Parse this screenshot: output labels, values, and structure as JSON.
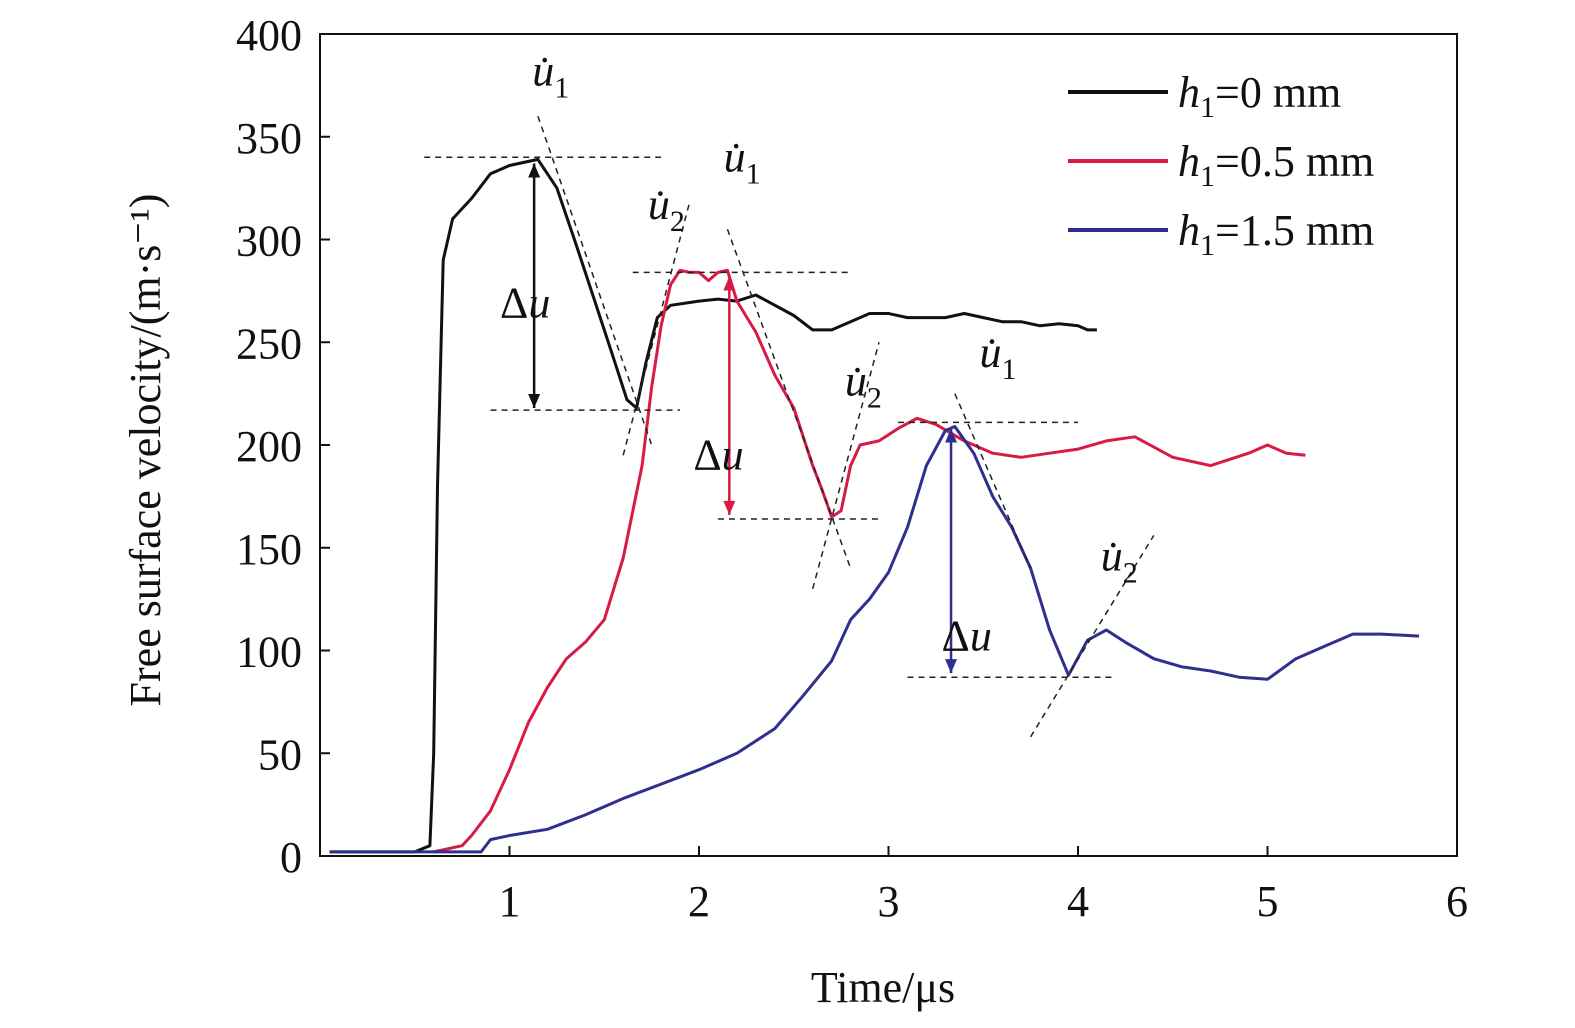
{
  "chart_data": {
    "type": "line",
    "title": "",
    "xlabel": "Time/μs",
    "ylabel": "Free surface velocity/(m·s⁻¹)",
    "xlim": [
      0,
      6
    ],
    "ylim": [
      0,
      400
    ],
    "xticks": [
      "1",
      "2",
      "3",
      "4",
      "5",
      "6"
    ],
    "yticks": [
      "0",
      "50",
      "100",
      "150",
      "200",
      "250",
      "300",
      "350",
      "400"
    ],
    "grid": false,
    "legend_position": "top-right",
    "series": [
      {
        "name": "h1=0 mm",
        "legend_label": {
          "italic": "h",
          "sub": "1",
          "rest": "=0 mm"
        },
        "color": "#111111",
        "x": [
          0.05,
          0.3,
          0.5,
          0.58,
          0.6,
          0.62,
          0.65,
          0.7,
          0.8,
          0.9,
          1.0,
          1.1,
          1.15,
          1.25,
          1.35,
          1.45,
          1.55,
          1.62,
          1.67,
          1.72,
          1.78,
          1.85,
          2.0,
          2.1,
          2.2,
          2.3,
          2.38,
          2.5,
          2.6,
          2.7,
          2.8,
          2.9,
          3.0,
          3.1,
          3.2,
          3.3,
          3.4,
          3.5,
          3.6,
          3.7,
          3.8,
          3.9,
          4.0,
          4.05,
          4.1
        ],
        "y": [
          2,
          2,
          2,
          5,
          50,
          180,
          290,
          310,
          320,
          332,
          336,
          338,
          339,
          325,
          298,
          270,
          242,
          222,
          218,
          240,
          262,
          268,
          270,
          271,
          270,
          273,
          269,
          263,
          256,
          256,
          260,
          264,
          264,
          262,
          262,
          262,
          264,
          262,
          260,
          260,
          258,
          259,
          258,
          256,
          256
        ]
      },
      {
        "name": "h1=0.5 mm",
        "legend_label": {
          "italic": "h",
          "sub": "1",
          "rest": "=0.5 mm"
        },
        "color": "#d81b45",
        "x": [
          0.6,
          0.75,
          0.8,
          0.9,
          1.0,
          1.1,
          1.2,
          1.3,
          1.4,
          1.5,
          1.6,
          1.7,
          1.75,
          1.8,
          1.85,
          1.9,
          1.95,
          2.0,
          2.05,
          2.1,
          2.15,
          2.2,
          2.3,
          2.4,
          2.5,
          2.6,
          2.65,
          2.7,
          2.75,
          2.8,
          2.85,
          2.95,
          3.05,
          3.15,
          3.25,
          3.4,
          3.55,
          3.7,
          3.85,
          4.0,
          4.15,
          4.3,
          4.5,
          4.7,
          4.9,
          5.0,
          5.1,
          5.2
        ],
        "y": [
          2,
          5,
          10,
          22,
          42,
          65,
          82,
          96,
          104,
          115,
          145,
          190,
          228,
          258,
          278,
          285,
          284,
          284,
          280,
          284,
          285,
          270,
          255,
          234,
          218,
          190,
          178,
          165,
          168,
          190,
          200,
          202,
          208,
          213,
          210,
          202,
          196,
          194,
          196,
          198,
          202,
          204,
          194,
          190,
          196,
          200,
          196,
          195
        ]
      },
      {
        "name": "h1=1.5 mm",
        "legend_label": {
          "italic": "h",
          "sub": "1",
          "rest": "=1.5 mm"
        },
        "color": "#2f2f8f",
        "x": [
          0.05,
          0.3,
          0.6,
          0.85,
          0.9,
          1.0,
          1.2,
          1.4,
          1.6,
          1.8,
          2.0,
          2.2,
          2.4,
          2.55,
          2.7,
          2.8,
          2.9,
          3.0,
          3.1,
          3.2,
          3.3,
          3.35,
          3.45,
          3.55,
          3.65,
          3.75,
          3.85,
          3.95,
          4.05,
          4.15,
          4.25,
          4.4,
          4.55,
          4.7,
          4.85,
          5.0,
          5.15,
          5.3,
          5.45,
          5.6,
          5.8
        ],
        "y": [
          2,
          2,
          2,
          2,
          8,
          10,
          13,
          20,
          28,
          35,
          42,
          50,
          62,
          78,
          95,
          115,
          125,
          138,
          160,
          190,
          207,
          209,
          196,
          175,
          160,
          140,
          110,
          88,
          105,
          110,
          104,
          96,
          92,
          90,
          87,
          86,
          96,
          102,
          108,
          108,
          107
        ]
      }
    ],
    "annotations": [
      {
        "label_main": "u",
        "label_sub": "1",
        "dot": true,
        "x": 1.12,
        "y": 375
      },
      {
        "label_main": "u",
        "label_sub": "2",
        "dot": true,
        "x": 1.73,
        "y": 310
      },
      {
        "label_main": "Δu",
        "x": 0.95,
        "y": 262
      },
      {
        "label_main": "u",
        "label_sub": "1",
        "dot": true,
        "x": 2.13,
        "y": 333
      },
      {
        "label_main": "u",
        "label_sub": "2",
        "dot": true,
        "x": 2.77,
        "y": 224
      },
      {
        "label_main": "Δu",
        "x": 1.97,
        "y": 188
      },
      {
        "label_main": "u",
        "label_sub": "1",
        "dot": true,
        "x": 3.48,
        "y": 238
      },
      {
        "label_main": "u",
        "label_sub": "2",
        "dot": true,
        "x": 4.12,
        "y": 139
      },
      {
        "label_main": "Δu",
        "x": 3.28,
        "y": 100
      }
    ]
  }
}
